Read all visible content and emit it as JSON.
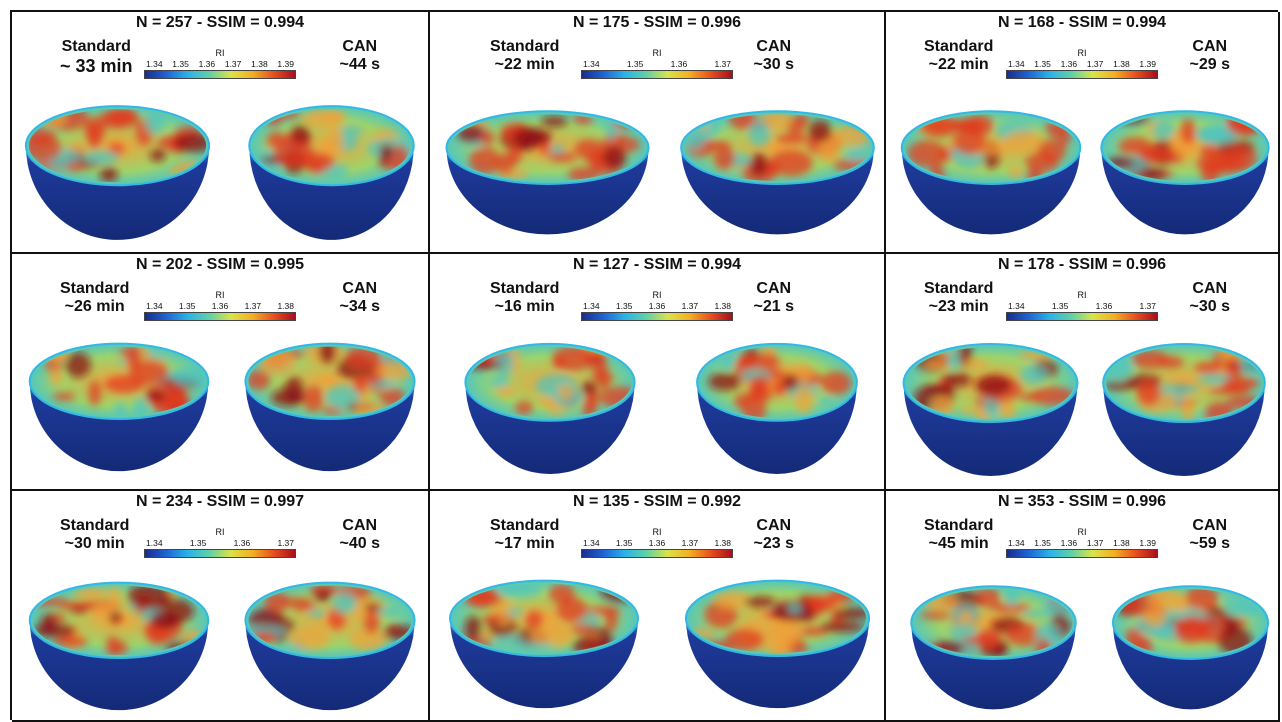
{
  "colors": {
    "border": "#111111",
    "colorbar": [
      "#1a2c8c",
      "#1f64d6",
      "#2ab3e8",
      "#5fd0a8",
      "#d8e44a",
      "#f4b022",
      "#e9501e",
      "#a80f1c"
    ],
    "cell_base": "#1e3a9a",
    "cell_rim": "#33b8e6",
    "cell_face": "#4fc6c0",
    "hot": "#e13a1f",
    "hot_dark": "#8c0c16",
    "warm": "#f0a23a"
  },
  "panels": [
    {
      "title": "N = 257 - SSIM = 0.994",
      "left_label": "Standard",
      "left_time": "~ 33 min",
      "right_label": "CAN",
      "right_time": "~44 s",
      "colorbar_label": "RI",
      "ticks": [
        "1.34",
        "1.35",
        "1.36",
        "1.37",
        "1.38",
        "1.39"
      ]
    },
    {
      "title": "N = 175 - SSIM = 0.996",
      "left_label": "Standard",
      "left_time": "~22 min",
      "right_label": "CAN",
      "right_time": "~30 s",
      "colorbar_label": "RI",
      "ticks": [
        "1.34",
        "1.35",
        "1.36",
        "1.37"
      ]
    },
    {
      "title": "N = 168 - SSIM = 0.994",
      "left_label": "Standard",
      "left_time": "~22 min",
      "right_label": "CAN",
      "right_time": "~29 s",
      "colorbar_label": "RI",
      "ticks": [
        "1.34",
        "1.35",
        "1.36",
        "1.37",
        "1.38",
        "1.39"
      ]
    },
    {
      "title": "N = 202 - SSIM = 0.995",
      "left_label": "Standard",
      "left_time": "~26 min",
      "right_label": "CAN",
      "right_time": "~34 s",
      "colorbar_label": "RI",
      "ticks": [
        "1.34",
        "1.35",
        "1.36",
        "1.37",
        "1.38"
      ]
    },
    {
      "title": "N = 127 - SSIM = 0.994",
      "left_label": "Standard",
      "left_time": "~16 min",
      "right_label": "CAN",
      "right_time": "~21 s",
      "colorbar_label": "RI",
      "ticks": [
        "1.34",
        "1.35",
        "1.36",
        "1.37",
        "1.38"
      ]
    },
    {
      "title": "N = 178 - SSIM = 0.996",
      "left_label": "Standard",
      "left_time": "~23 min",
      "right_label": "CAN",
      "right_time": "~30 s",
      "colorbar_label": "RI",
      "ticks": [
        "1.34",
        "1.35",
        "1.36",
        "1.37"
      ]
    },
    {
      "title": "N = 234 - SSIM = 0.997",
      "left_label": "Standard",
      "left_time": "~30 min",
      "right_label": "CAN",
      "right_time": "~40 s",
      "colorbar_label": "RI",
      "ticks": [
        "1.34",
        "1.35",
        "1.36",
        "1.37"
      ]
    },
    {
      "title": "N = 135 - SSIM = 0.992",
      "left_label": "Standard",
      "left_time": "~17 min",
      "right_label": "CAN",
      "right_time": "~23 s",
      "colorbar_label": "RI",
      "ticks": [
        "1.34",
        "1.35",
        "1.36",
        "1.37",
        "1.38"
      ]
    },
    {
      "title": "N = 353 - SSIM = 0.996",
      "left_label": "Standard",
      "left_time": "~45 min",
      "right_label": "CAN",
      "right_time": "~59 s",
      "colorbar_label": "RI",
      "ticks": [
        "1.34",
        "1.35",
        "1.36",
        "1.37",
        "1.38",
        "1.39"
      ]
    }
  ]
}
